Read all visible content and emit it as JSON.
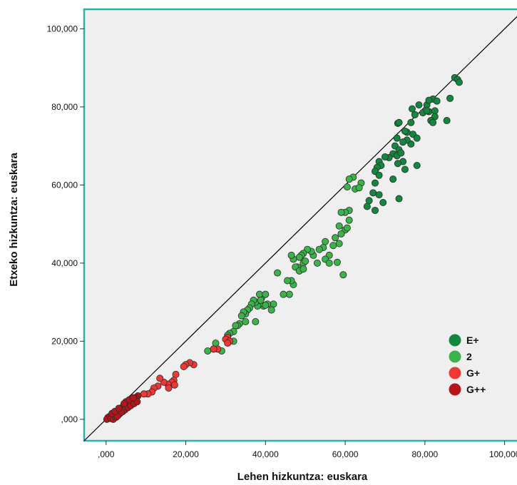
{
  "chart_data": {
    "type": "scatter",
    "xlabel": "Lehen hizkuntza: euskara",
    "ylabel": "Etxeko hizkuntza: euskara",
    "xlim": [
      -5500,
      104000
    ],
    "ylim": [
      -5500,
      105000
    ],
    "xticks": [
      {
        "value": 0,
        "label": ",000"
      },
      {
        "value": 20000,
        "label": "20,000"
      },
      {
        "value": 40000,
        "label": "40,000"
      },
      {
        "value": 60000,
        "label": "60,000"
      },
      {
        "value": 80000,
        "label": "80,000"
      },
      {
        "value": 100000,
        "label": "100,000"
      }
    ],
    "yticks": [
      {
        "value": 0,
        "label": ",000"
      },
      {
        "value": 20000,
        "label": "20,000"
      },
      {
        "value": 40000,
        "label": "40,000"
      },
      {
        "value": 60000,
        "label": "60,000"
      },
      {
        "value": 80000,
        "label": "80,000"
      },
      {
        "value": 100000,
        "label": "100,000"
      }
    ],
    "grid": false,
    "legend_position": "bottom-right",
    "reference_line": "y = x",
    "colors": {
      "plot_background": "#efefef",
      "plot_border": "#29b3a6",
      "reference_line": "#000000",
      "point_outline": "#2b2b2b"
    },
    "series": [
      {
        "name": "E+",
        "color": "#12873d",
        "points": [
          [
            87500,
            87500
          ],
          [
            88200,
            87000
          ],
          [
            88600,
            86300
          ],
          [
            86300,
            82200
          ],
          [
            82000,
            82000
          ],
          [
            80500,
            80500
          ],
          [
            78500,
            80500
          ],
          [
            77500,
            78000
          ],
          [
            79500,
            78500
          ],
          [
            81000,
            78800
          ],
          [
            82500,
            79000
          ],
          [
            83000,
            81500
          ],
          [
            82500,
            77500
          ],
          [
            81500,
            76500
          ],
          [
            82000,
            76000
          ],
          [
            85500,
            76500
          ],
          [
            76500,
            76000
          ],
          [
            75500,
            73500
          ],
          [
            77000,
            73000
          ],
          [
            78000,
            72000
          ],
          [
            76500,
            70500
          ],
          [
            75500,
            71500
          ],
          [
            74500,
            71000
          ],
          [
            73000,
            72000
          ],
          [
            72500,
            70000
          ],
          [
            73500,
            69000
          ],
          [
            72000,
            68000
          ],
          [
            73000,
            67500
          ],
          [
            74000,
            68200
          ],
          [
            74500,
            66000
          ],
          [
            71000,
            67000
          ],
          [
            70000,
            67200
          ],
          [
            68500,
            66000
          ],
          [
            69000,
            65000
          ],
          [
            68000,
            64500
          ],
          [
            67500,
            63500
          ],
          [
            68500,
            62500
          ],
          [
            67500,
            60500
          ],
          [
            67000,
            58000
          ],
          [
            68500,
            57500
          ],
          [
            66000,
            56000
          ],
          [
            65500,
            54500
          ],
          [
            67500,
            53500
          ],
          [
            69500,
            55500
          ],
          [
            72000,
            61500
          ],
          [
            73500,
            56500
          ],
          [
            75000,
            64000
          ],
          [
            78000,
            65000
          ],
          [
            73200,
            65500
          ],
          [
            75000,
            73800
          ],
          [
            73200,
            75800
          ],
          [
            73500,
            76000
          ],
          [
            76800,
            79500
          ],
          [
            81000,
            81700
          ],
          [
            80500,
            79000
          ]
        ]
      },
      {
        "name": "2",
        "color": "#3cb34a",
        "points": [
          [
            62000,
            62000
          ],
          [
            61000,
            61500
          ],
          [
            60500,
            59500
          ],
          [
            62500,
            59000
          ],
          [
            64000,
            60500
          ],
          [
            63500,
            59300
          ],
          [
            61000,
            53500
          ],
          [
            60000,
            53000
          ],
          [
            59000,
            53000
          ],
          [
            61000,
            51000
          ],
          [
            58500,
            49500
          ],
          [
            60000,
            48500
          ],
          [
            60500,
            49000
          ],
          [
            59000,
            47500
          ],
          [
            57500,
            46500
          ],
          [
            58500,
            45000
          ],
          [
            57000,
            44500
          ],
          [
            56000,
            42000
          ],
          [
            55000,
            45500
          ],
          [
            54500,
            44000
          ],
          [
            53500,
            43500
          ],
          [
            52000,
            42000
          ],
          [
            51500,
            43000
          ],
          [
            50500,
            43500
          ],
          [
            49500,
            42500
          ],
          [
            49000,
            42000
          ],
          [
            48500,
            41500
          ],
          [
            49500,
            40000
          ],
          [
            48000,
            39000
          ],
          [
            47000,
            41000
          ],
          [
            46500,
            42000
          ],
          [
            47500,
            39000
          ],
          [
            48500,
            38000
          ],
          [
            49500,
            38500
          ],
          [
            50000,
            40500
          ],
          [
            53000,
            40000
          ],
          [
            55000,
            41000
          ],
          [
            56000,
            40000
          ],
          [
            58000,
            40200
          ],
          [
            59500,
            37000
          ],
          [
            47000,
            34500
          ],
          [
            46500,
            35500
          ],
          [
            45500,
            35500
          ],
          [
            46000,
            32000
          ],
          [
            44500,
            32000
          ],
          [
            43000,
            37500
          ],
          [
            42000,
            29500
          ],
          [
            41500,
            28000
          ],
          [
            40500,
            29500
          ],
          [
            39500,
            29000
          ],
          [
            38500,
            29500
          ],
          [
            38000,
            29000
          ],
          [
            37500,
            30000
          ],
          [
            37000,
            30500
          ],
          [
            36500,
            29500
          ],
          [
            36000,
            28500
          ],
          [
            35500,
            28000
          ],
          [
            35000,
            27000
          ],
          [
            34500,
            27500
          ],
          [
            34000,
            26500
          ],
          [
            33500,
            24500
          ],
          [
            33000,
            24000
          ],
          [
            32500,
            24000
          ],
          [
            32000,
            22500
          ],
          [
            31000,
            22000
          ],
          [
            30500,
            21500
          ],
          [
            32000,
            20000
          ],
          [
            35000,
            25000
          ],
          [
            37500,
            25000
          ],
          [
            39000,
            31000
          ],
          [
            38500,
            32000
          ],
          [
            40000,
            32000
          ],
          [
            40000,
            29200
          ],
          [
            38800,
            30500
          ],
          [
            29000,
            17500
          ],
          [
            27000,
            18000
          ],
          [
            27500,
            19500
          ],
          [
            25500,
            17500
          ]
        ]
      },
      {
        "name": "G+",
        "color": "#ee3835",
        "points": [
          [
            30500,
            21000
          ],
          [
            30000,
            20500
          ],
          [
            31000,
            20000
          ],
          [
            30500,
            19500
          ],
          [
            28000,
            18000
          ],
          [
            27000,
            18000
          ],
          [
            22000,
            14000
          ],
          [
            21000,
            14500
          ],
          [
            20000,
            14000
          ],
          [
            19500,
            13500
          ],
          [
            17500,
            11500
          ],
          [
            17000,
            10000
          ],
          [
            16500,
            9500
          ],
          [
            15500,
            9000
          ],
          [
            14500,
            9500
          ],
          [
            13500,
            10500
          ],
          [
            13000,
            8500
          ],
          [
            12000,
            8000
          ],
          [
            11500,
            7000
          ],
          [
            10500,
            6500
          ],
          [
            9500,
            6500
          ],
          [
            17200,
            8800
          ],
          [
            15700,
            8000
          ]
        ]
      },
      {
        "name": "G++",
        "color": "#b5141a",
        "points": [
          [
            8000,
            6000
          ],
          [
            7500,
            5500
          ],
          [
            7000,
            5500
          ],
          [
            6500,
            5000
          ],
          [
            6000,
            4500
          ],
          [
            5500,
            4000
          ],
          [
            5000,
            4500
          ],
          [
            4500,
            3500
          ],
          [
            4000,
            3000
          ],
          [
            3500,
            2500
          ],
          [
            3000,
            2000
          ],
          [
            2500,
            1500
          ],
          [
            2000,
            1000
          ],
          [
            1500,
            500
          ],
          [
            1000,
            800
          ],
          [
            500,
            500
          ],
          [
            200,
            0
          ],
          [
            1200,
            200
          ],
          [
            1800,
            0
          ],
          [
            2500,
            500
          ],
          [
            3000,
            1000
          ],
          [
            3500,
            1500
          ],
          [
            4200,
            2000
          ],
          [
            4800,
            2500
          ],
          [
            5500,
            3000
          ],
          [
            6200,
            3500
          ],
          [
            7000,
            4000
          ],
          [
            7800,
            4500
          ],
          [
            3800,
            1800
          ],
          [
            2800,
            800
          ],
          [
            1500,
            1500
          ],
          [
            2200,
            2000
          ],
          [
            4500,
            4000
          ],
          [
            5800,
            5000
          ],
          [
            6800,
            5500
          ],
          [
            3200,
            2800
          ]
        ]
      }
    ]
  }
}
